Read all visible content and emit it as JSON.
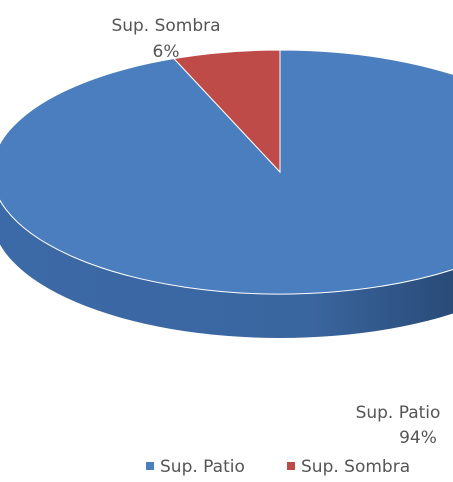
{
  "chart_data": {
    "type": "pie",
    "style": "3d",
    "categories": [
      "Sup. Patio",
      "Sup. Sombra"
    ],
    "values": [
      94,
      6
    ],
    "data_labels": [
      {
        "name": "Sup. Patio",
        "value": "94%"
      },
      {
        "name": "Sup. Sombra",
        "value": "6%"
      }
    ],
    "colors": {
      "Sup. Patio": "#4A7EBF",
      "Sup. Sombra": "#BE4B48"
    },
    "legend": {
      "position": "bottom",
      "entries": [
        "Sup. Patio",
        "Sup. Sombra"
      ]
    }
  }
}
